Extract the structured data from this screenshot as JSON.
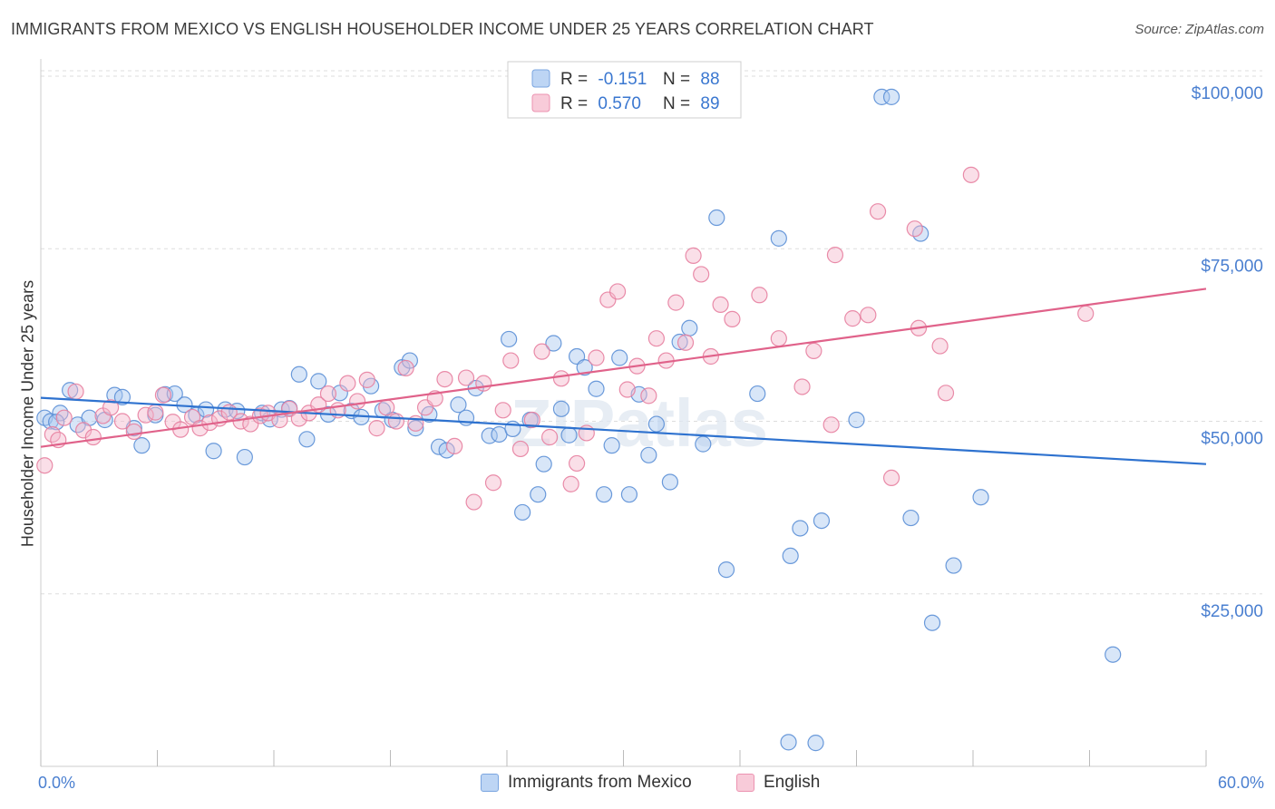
{
  "title": "IMMIGRANTS FROM MEXICO VS ENGLISH HOUSEHOLDER INCOME UNDER 25 YEARS CORRELATION CHART",
  "source": "Source: ZipAtlas.com",
  "watermark": "ZIPatlas",
  "colors": {
    "blue_fill": "#a9c8ef",
    "blue_stroke": "#5b8fd6",
    "blue_line": "#2e72cf",
    "pink_fill": "#f5b8cb",
    "pink_stroke": "#e77fa0",
    "pink_line": "#e0628a",
    "axis_text": "#4a7fd0",
    "grid": "#dddddd"
  },
  "legend": {
    "rows": [
      {
        "r_label": "R =",
        "r_value": "-0.151",
        "n_label": "N =",
        "n_value": "88"
      },
      {
        "r_label": "R =",
        "r_value": "0.570",
        "n_label": "N =",
        "n_value": "89"
      }
    ]
  },
  "bottom_legend": [
    "Immigrants from Mexico",
    "English"
  ],
  "chart_data": {
    "type": "scatter",
    "xlabel": "",
    "ylabel": "Householder Income Under 25 years",
    "x_tick_labels": [
      "0.0%",
      "60.0%"
    ],
    "y_tick_labels": [
      "$25,000",
      "$50,000",
      "$75,000",
      "$100,000"
    ],
    "y_ticks": [
      25000,
      50000,
      75000,
      100000
    ],
    "xlim": [
      0,
      60
    ],
    "ylim": [
      0,
      102500
    ],
    "grid": true,
    "series": [
      {
        "name": "Immigrants from Mexico",
        "color": "#a9c8ef",
        "trend": {
          "x": [
            0,
            60
          ],
          "y": [
            53400,
            43800
          ]
        },
        "points": [
          [
            0.2,
            50500
          ],
          [
            0.5,
            50000
          ],
          [
            1.0,
            51200
          ],
          [
            1.5,
            54500
          ],
          [
            1.9,
            49500
          ],
          [
            2.5,
            50500
          ],
          [
            3.8,
            53800
          ],
          [
            4.2,
            53500
          ],
          [
            4.8,
            49000
          ],
          [
            5.2,
            46500
          ],
          [
            5.9,
            50900
          ],
          [
            6.4,
            53900
          ],
          [
            6.9,
            54000
          ],
          [
            7.4,
            52400
          ],
          [
            8.0,
            50900
          ],
          [
            8.5,
            51700
          ],
          [
            8.9,
            45700
          ],
          [
            9.5,
            51700
          ],
          [
            10.1,
            51500
          ],
          [
            10.5,
            44800
          ],
          [
            11.4,
            51200
          ],
          [
            11.8,
            50300
          ],
          [
            12.4,
            51700
          ],
          [
            12.8,
            51900
          ],
          [
            13.3,
            56800
          ],
          [
            13.7,
            47400
          ],
          [
            14.3,
            55800
          ],
          [
            14.8,
            51000
          ],
          [
            15.4,
            54100
          ],
          [
            16.0,
            51500
          ],
          [
            16.5,
            50600
          ],
          [
            17.0,
            55100
          ],
          [
            17.6,
            51600
          ],
          [
            18.1,
            50200
          ],
          [
            18.6,
            57800
          ],
          [
            19.0,
            58800
          ],
          [
            19.3,
            49000
          ],
          [
            20.0,
            51000
          ],
          [
            20.5,
            46300
          ],
          [
            20.9,
            45800
          ],
          [
            21.5,
            52400
          ],
          [
            21.9,
            50500
          ],
          [
            22.4,
            54800
          ],
          [
            23.1,
            47900
          ],
          [
            23.6,
            48100
          ],
          [
            24.1,
            61900
          ],
          [
            24.3,
            48900
          ],
          [
            24.8,
            36800
          ],
          [
            25.2,
            50200
          ],
          [
            25.6,
            39400
          ],
          [
            25.9,
            43800
          ],
          [
            26.4,
            61300
          ],
          [
            26.8,
            51800
          ],
          [
            27.2,
            48000
          ],
          [
            27.6,
            59400
          ],
          [
            28.0,
            57800
          ],
          [
            28.6,
            54700
          ],
          [
            29.0,
            39400
          ],
          [
            29.4,
            46500
          ],
          [
            29.8,
            59200
          ],
          [
            30.3,
            39400
          ],
          [
            30.8,
            53900
          ],
          [
            31.3,
            45100
          ],
          [
            31.7,
            49600
          ],
          [
            32.4,
            41200
          ],
          [
            32.9,
            61500
          ],
          [
            33.4,
            63500
          ],
          [
            34.1,
            46700
          ],
          [
            34.8,
            79500
          ],
          [
            35.3,
            28500
          ],
          [
            36.9,
            54000
          ],
          [
            38.0,
            76500
          ],
          [
            38.6,
            30500
          ],
          [
            39.1,
            34500
          ],
          [
            40.2,
            35600
          ],
          [
            42.0,
            50200
          ],
          [
            43.3,
            97000
          ],
          [
            43.8,
            97000
          ],
          [
            44.8,
            36000
          ],
          [
            45.3,
            77200
          ],
          [
            45.9,
            20800
          ],
          [
            47.0,
            29100
          ],
          [
            48.4,
            39000
          ],
          [
            38.5,
            3500
          ],
          [
            39.9,
            3400
          ],
          [
            55.2,
            16200
          ],
          [
            0.8,
            49900
          ],
          [
            3.3,
            50200
          ]
        ]
      },
      {
        "name": "English",
        "color": "#f5b8cb",
        "trend": {
          "x": [
            0,
            60
          ],
          "y": [
            46300,
            69200
          ]
        },
        "points": [
          [
            0.2,
            43600
          ],
          [
            0.6,
            48100
          ],
          [
            1.2,
            50500
          ],
          [
            1.8,
            54300
          ],
          [
            2.2,
            48700
          ],
          [
            2.7,
            47700
          ],
          [
            3.2,
            50800
          ],
          [
            3.6,
            52000
          ],
          [
            4.2,
            50000
          ],
          [
            4.8,
            48500
          ],
          [
            5.4,
            50900
          ],
          [
            5.9,
            51300
          ],
          [
            6.3,
            53800
          ],
          [
            6.8,
            49900
          ],
          [
            7.2,
            48800
          ],
          [
            7.8,
            50600
          ],
          [
            8.2,
            49000
          ],
          [
            8.7,
            49800
          ],
          [
            9.2,
            50400
          ],
          [
            9.7,
            51300
          ],
          [
            10.3,
            50000
          ],
          [
            10.8,
            49600
          ],
          [
            11.3,
            50800
          ],
          [
            11.7,
            51200
          ],
          [
            12.3,
            50200
          ],
          [
            12.8,
            51800
          ],
          [
            13.3,
            50400
          ],
          [
            13.8,
            51200
          ],
          [
            14.3,
            52400
          ],
          [
            14.8,
            54000
          ],
          [
            15.3,
            51600
          ],
          [
            15.8,
            55500
          ],
          [
            16.3,
            52900
          ],
          [
            16.8,
            56000
          ],
          [
            17.3,
            49000
          ],
          [
            17.8,
            52000
          ],
          [
            18.3,
            50000
          ],
          [
            18.8,
            57700
          ],
          [
            19.3,
            49700
          ],
          [
            19.8,
            52000
          ],
          [
            20.3,
            53300
          ],
          [
            20.8,
            56100
          ],
          [
            21.3,
            46400
          ],
          [
            21.9,
            56300
          ],
          [
            22.3,
            38300
          ],
          [
            22.8,
            55500
          ],
          [
            23.3,
            41100
          ],
          [
            23.8,
            51600
          ],
          [
            24.2,
            58800
          ],
          [
            24.7,
            46000
          ],
          [
            25.3,
            50200
          ],
          [
            25.8,
            60100
          ],
          [
            26.2,
            47700
          ],
          [
            26.8,
            56200
          ],
          [
            27.3,
            40900
          ],
          [
            27.6,
            43900
          ],
          [
            28.1,
            48300
          ],
          [
            28.6,
            59200
          ],
          [
            29.2,
            67600
          ],
          [
            29.7,
            68800
          ],
          [
            30.2,
            54600
          ],
          [
            30.7,
            58000
          ],
          [
            31.3,
            53700
          ],
          [
            31.7,
            62000
          ],
          [
            32.2,
            58800
          ],
          [
            32.7,
            67200
          ],
          [
            33.2,
            61400
          ],
          [
            33.6,
            74000
          ],
          [
            34.0,
            71300
          ],
          [
            34.5,
            59400
          ],
          [
            35.0,
            66900
          ],
          [
            35.6,
            64800
          ],
          [
            37.0,
            68300
          ],
          [
            38.0,
            62000
          ],
          [
            39.2,
            55000
          ],
          [
            39.8,
            60200
          ],
          [
            40.7,
            49500
          ],
          [
            40.9,
            74100
          ],
          [
            41.8,
            64900
          ],
          [
            42.6,
            65400
          ],
          [
            43.1,
            80400
          ],
          [
            43.8,
            41800
          ],
          [
            45.0,
            77900
          ],
          [
            45.2,
            63500
          ],
          [
            46.3,
            60900
          ],
          [
            46.6,
            54100
          ],
          [
            47.9,
            85700
          ],
          [
            53.8,
            65600
          ],
          [
            0.9,
            47300
          ]
        ]
      }
    ]
  }
}
